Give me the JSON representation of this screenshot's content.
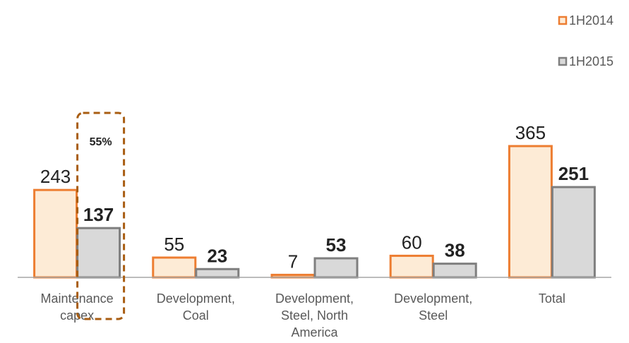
{
  "chart_data": {
    "type": "bar",
    "categories": [
      [
        "Maintenance",
        "capex"
      ],
      [
        "Development,",
        "Coal"
      ],
      [
        "Development,",
        "Steel, North",
        "America"
      ],
      [
        "Development,",
        "Steel"
      ],
      [
        "Total"
      ]
    ],
    "series": [
      {
        "name": "1H2014",
        "values": [
          243,
          55,
          7,
          60,
          365
        ],
        "fill": "#fdebd6",
        "stroke": "#ed7d31",
        "label_weight": "normal"
      },
      {
        "name": "1H2015",
        "values": [
          137,
          23,
          53,
          38,
          251
        ],
        "fill": "#d9d9d9",
        "stroke": "#7f7f7f",
        "label_weight": "bold"
      }
    ],
    "annotation": {
      "text": "55%",
      "category_index": 0,
      "series_index": 1,
      "stroke": "#a85d12"
    },
    "ylim": [
      0,
      365
    ],
    "legend_position": "top-right",
    "grid": false,
    "title": "",
    "xlabel": "",
    "ylabel": ""
  }
}
